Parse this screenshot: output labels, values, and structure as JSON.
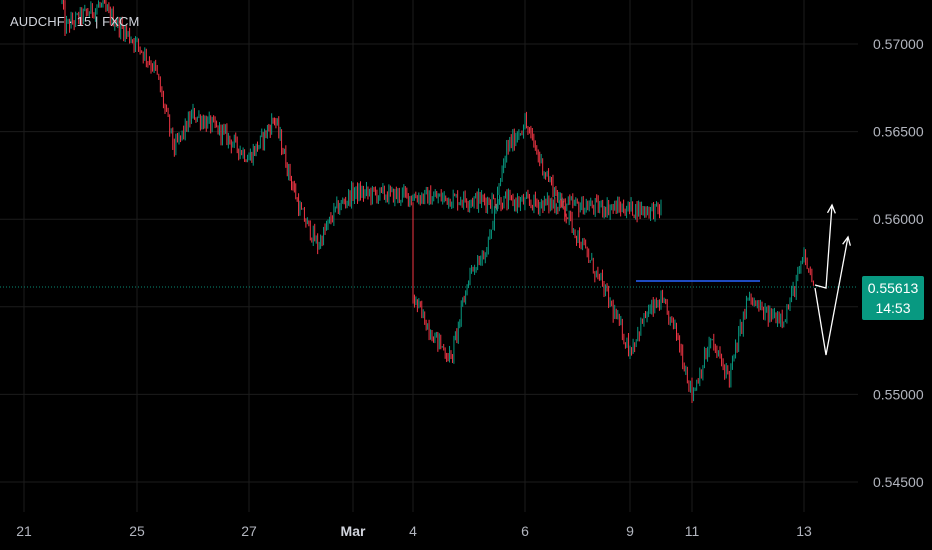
{
  "symbol_title": "AUDCHF · 15 | FXCM",
  "current_price": {
    "value": "0.55613",
    "countdown": "14:53",
    "color": "#089981"
  },
  "colors": {
    "up": "#089981",
    "down": "#f23645",
    "grid": "#1c1c1c",
    "horizontal_line": "#2962ff",
    "projection_arrows": "#ffffff"
  },
  "chart_data": {
    "type": "candlestick",
    "timeframe": "15",
    "y_ticks": [
      "0.57000",
      "0.56500",
      "0.56000",
      "0.55500",
      "0.55000",
      "0.54500"
    ],
    "y_range": [
      0.543,
      0.573
    ],
    "x_ticks": [
      "21",
      "25",
      "27",
      "Mar",
      "4",
      "6",
      "9",
      "11",
      "13"
    ],
    "grid": true,
    "price_path": [
      [
        "21",
        0.5725
      ],
      [
        "22",
        0.571
      ],
      [
        "24",
        0.5722
      ],
      [
        "25",
        0.57
      ],
      [
        "25",
        0.5685
      ],
      [
        "25",
        0.564
      ],
      [
        "26",
        0.566
      ],
      [
        "26",
        0.565
      ],
      [
        "27",
        0.5635
      ],
      [
        "27",
        0.5645
      ],
      [
        "27",
        0.5658
      ],
      [
        "27",
        0.563
      ],
      [
        "28",
        0.5605
      ],
      [
        "28",
        0.5585
      ],
      [
        "28",
        0.5605
      ],
      [
        "Mar",
        0.5615
      ],
      [
        "Mar",
        0.561
      ],
      [
        "Mar",
        0.5605
      ],
      [
        "4",
        0.5555
      ],
      [
        "4",
        0.5535
      ],
      [
        "4",
        0.552
      ],
      [
        "5",
        0.557
      ],
      [
        "5",
        0.5585
      ],
      [
        "5",
        0.564
      ],
      [
        "6",
        0.5655
      ],
      [
        "6",
        0.563
      ],
      [
        "6",
        0.561
      ],
      [
        "7",
        0.559
      ],
      [
        "7",
        0.556
      ],
      [
        "9",
        0.5525
      ],
      [
        "9",
        0.5545
      ],
      [
        "10",
        0.5553
      ],
      [
        "10",
        0.5535
      ],
      [
        "11",
        0.55
      ],
      [
        "11",
        0.553
      ],
      [
        "11",
        0.551
      ],
      [
        "12",
        0.5555
      ],
      [
        "12",
        0.5545
      ],
      [
        "12",
        0.5545
      ],
      [
        "13",
        0.5578
      ],
      [
        "13",
        0.5561
      ]
    ],
    "annotations": [
      {
        "type": "horizontal_line",
        "price": 0.5563,
        "from": "9",
        "to": "12"
      },
      {
        "type": "projection_arrow",
        "path": [
          0.5561,
          0.5555,
          0.5608
        ]
      },
      {
        "type": "projection_arrow",
        "path": [
          0.5561,
          0.5527,
          0.5594
        ]
      }
    ]
  }
}
